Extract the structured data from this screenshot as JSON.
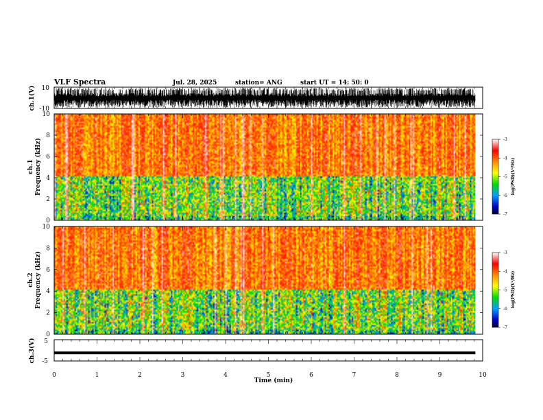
{
  "header": {
    "title": "VLF Spectra",
    "date": "Jul. 28, 2025",
    "station": "station= ANG",
    "start": "start UT =  14: 50: 0"
  },
  "chart_data": [
    {
      "type": "line",
      "name": "ch1-waveform",
      "ylabel": "ch.1(V)",
      "ylim": [
        -10,
        10
      ],
      "yticks": [
        "10",
        "-10"
      ],
      "x_range_min": [
        0,
        10
      ],
      "data_extent_min": [
        0,
        9.83
      ]
    },
    {
      "type": "heatmap",
      "name": "ch1-spectrogram",
      "ylabel": "ch.1\nFrequency (kHz)",
      "ylabel_line1": "ch.1",
      "ylabel_line2": "Frequency (kHz)",
      "ylim": [
        0,
        10
      ],
      "yticks": [
        "0",
        "2",
        "4",
        "6",
        "8",
        "10"
      ],
      "colorbar": {
        "label": "log(PSD)(V²/Hz)",
        "range": [
          -7,
          -3
        ],
        "ticks": [
          "-3",
          "-4",
          "-5",
          "-6",
          "-7"
        ]
      }
    },
    {
      "type": "heatmap",
      "name": "ch2-spectrogram",
      "ylabel_line1": "ch.2",
      "ylabel_line2": "Frequency (kHz)",
      "ylim": [
        0,
        10
      ],
      "yticks": [
        "0",
        "2",
        "4",
        "6",
        "8",
        "10"
      ],
      "colorbar": {
        "label": "log(PSD)(V²/Hz)",
        "range": [
          -7,
          -3
        ],
        "ticks": [
          "-3",
          "-4",
          "-5",
          "-6",
          "-7"
        ]
      }
    },
    {
      "type": "line",
      "name": "ch3-waveform",
      "ylabel": "ch.3(V)",
      "ylim": [
        -5,
        5
      ],
      "yticks": [
        "5",
        "-5"
      ],
      "value_approx": -1.2
    }
  ],
  "xaxis": {
    "label": "Time (min)",
    "range": [
      0,
      10
    ],
    "ticks": [
      "0",
      "1",
      "2",
      "3",
      "4",
      "5",
      "6",
      "7",
      "8",
      "9",
      "10"
    ]
  },
  "colorbar_label_main": "log(PSD)(V",
  "colorbar_label_sup": "2",
  "colorbar_label_tail": "/Hz)",
  "colors": {
    "psd_low": "#0000aa",
    "psd_mid": "#00dd00",
    "psd_high": "#ff2200",
    "psd_max": "#ffffff"
  }
}
